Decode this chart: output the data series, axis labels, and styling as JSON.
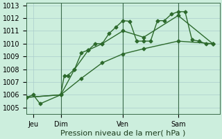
{
  "background_color": "#cceedd",
  "grid_color": "#aacccc",
  "line_color": "#2d6a2d",
  "title": "Pression niveau de la mer( hPa )",
  "ylim": [
    1004.5,
    1013.2
  ],
  "yticks": [
    1005,
    1006,
    1007,
    1008,
    1009,
    1010,
    1011,
    1012,
    1013
  ],
  "xlim": [
    0,
    28
  ],
  "xtick_positions": [
    1,
    5,
    14,
    22
  ],
  "xtick_labels": [
    "Jeu",
    "Dim",
    "Ven",
    "Sam"
  ],
  "vlines": [
    5,
    14,
    22
  ],
  "series1_x": [
    0,
    1,
    2,
    5,
    5.5,
    6,
    7,
    8,
    9,
    10,
    11,
    12,
    13,
    14,
    15,
    16,
    17,
    18,
    19,
    20,
    21,
    22,
    23,
    24,
    25,
    26,
    27
  ],
  "series1_y": [
    1005.8,
    1006.0,
    1005.3,
    1006.0,
    1007.5,
    1007.5,
    1008.0,
    1009.3,
    1009.5,
    1010.0,
    1010.0,
    1010.8,
    1011.3,
    1011.8,
    1011.75,
    1010.2,
    1010.2,
    1010.2,
    1011.8,
    1011.8,
    1012.3,
    1012.5,
    1012.5,
    1010.3,
    1010.2,
    1010.0,
    1010.0
  ],
  "series2_x": [
    0,
    5,
    7,
    9,
    11,
    14,
    17,
    22,
    27
  ],
  "series2_y": [
    1005.8,
    1006.0,
    1008.0,
    1009.5,
    1010.0,
    1011.0,
    1010.5,
    1012.2,
    1010.0
  ],
  "series3_x": [
    0,
    5,
    8,
    11,
    14,
    17,
    22,
    27
  ],
  "series3_y": [
    1005.8,
    1006.0,
    1007.3,
    1008.5,
    1009.2,
    1009.6,
    1010.2,
    1010.0
  ],
  "marker": "D",
  "marker_size": 2.5,
  "linewidth": 1.0,
  "title_fontsize": 8,
  "tick_fontsize": 7
}
